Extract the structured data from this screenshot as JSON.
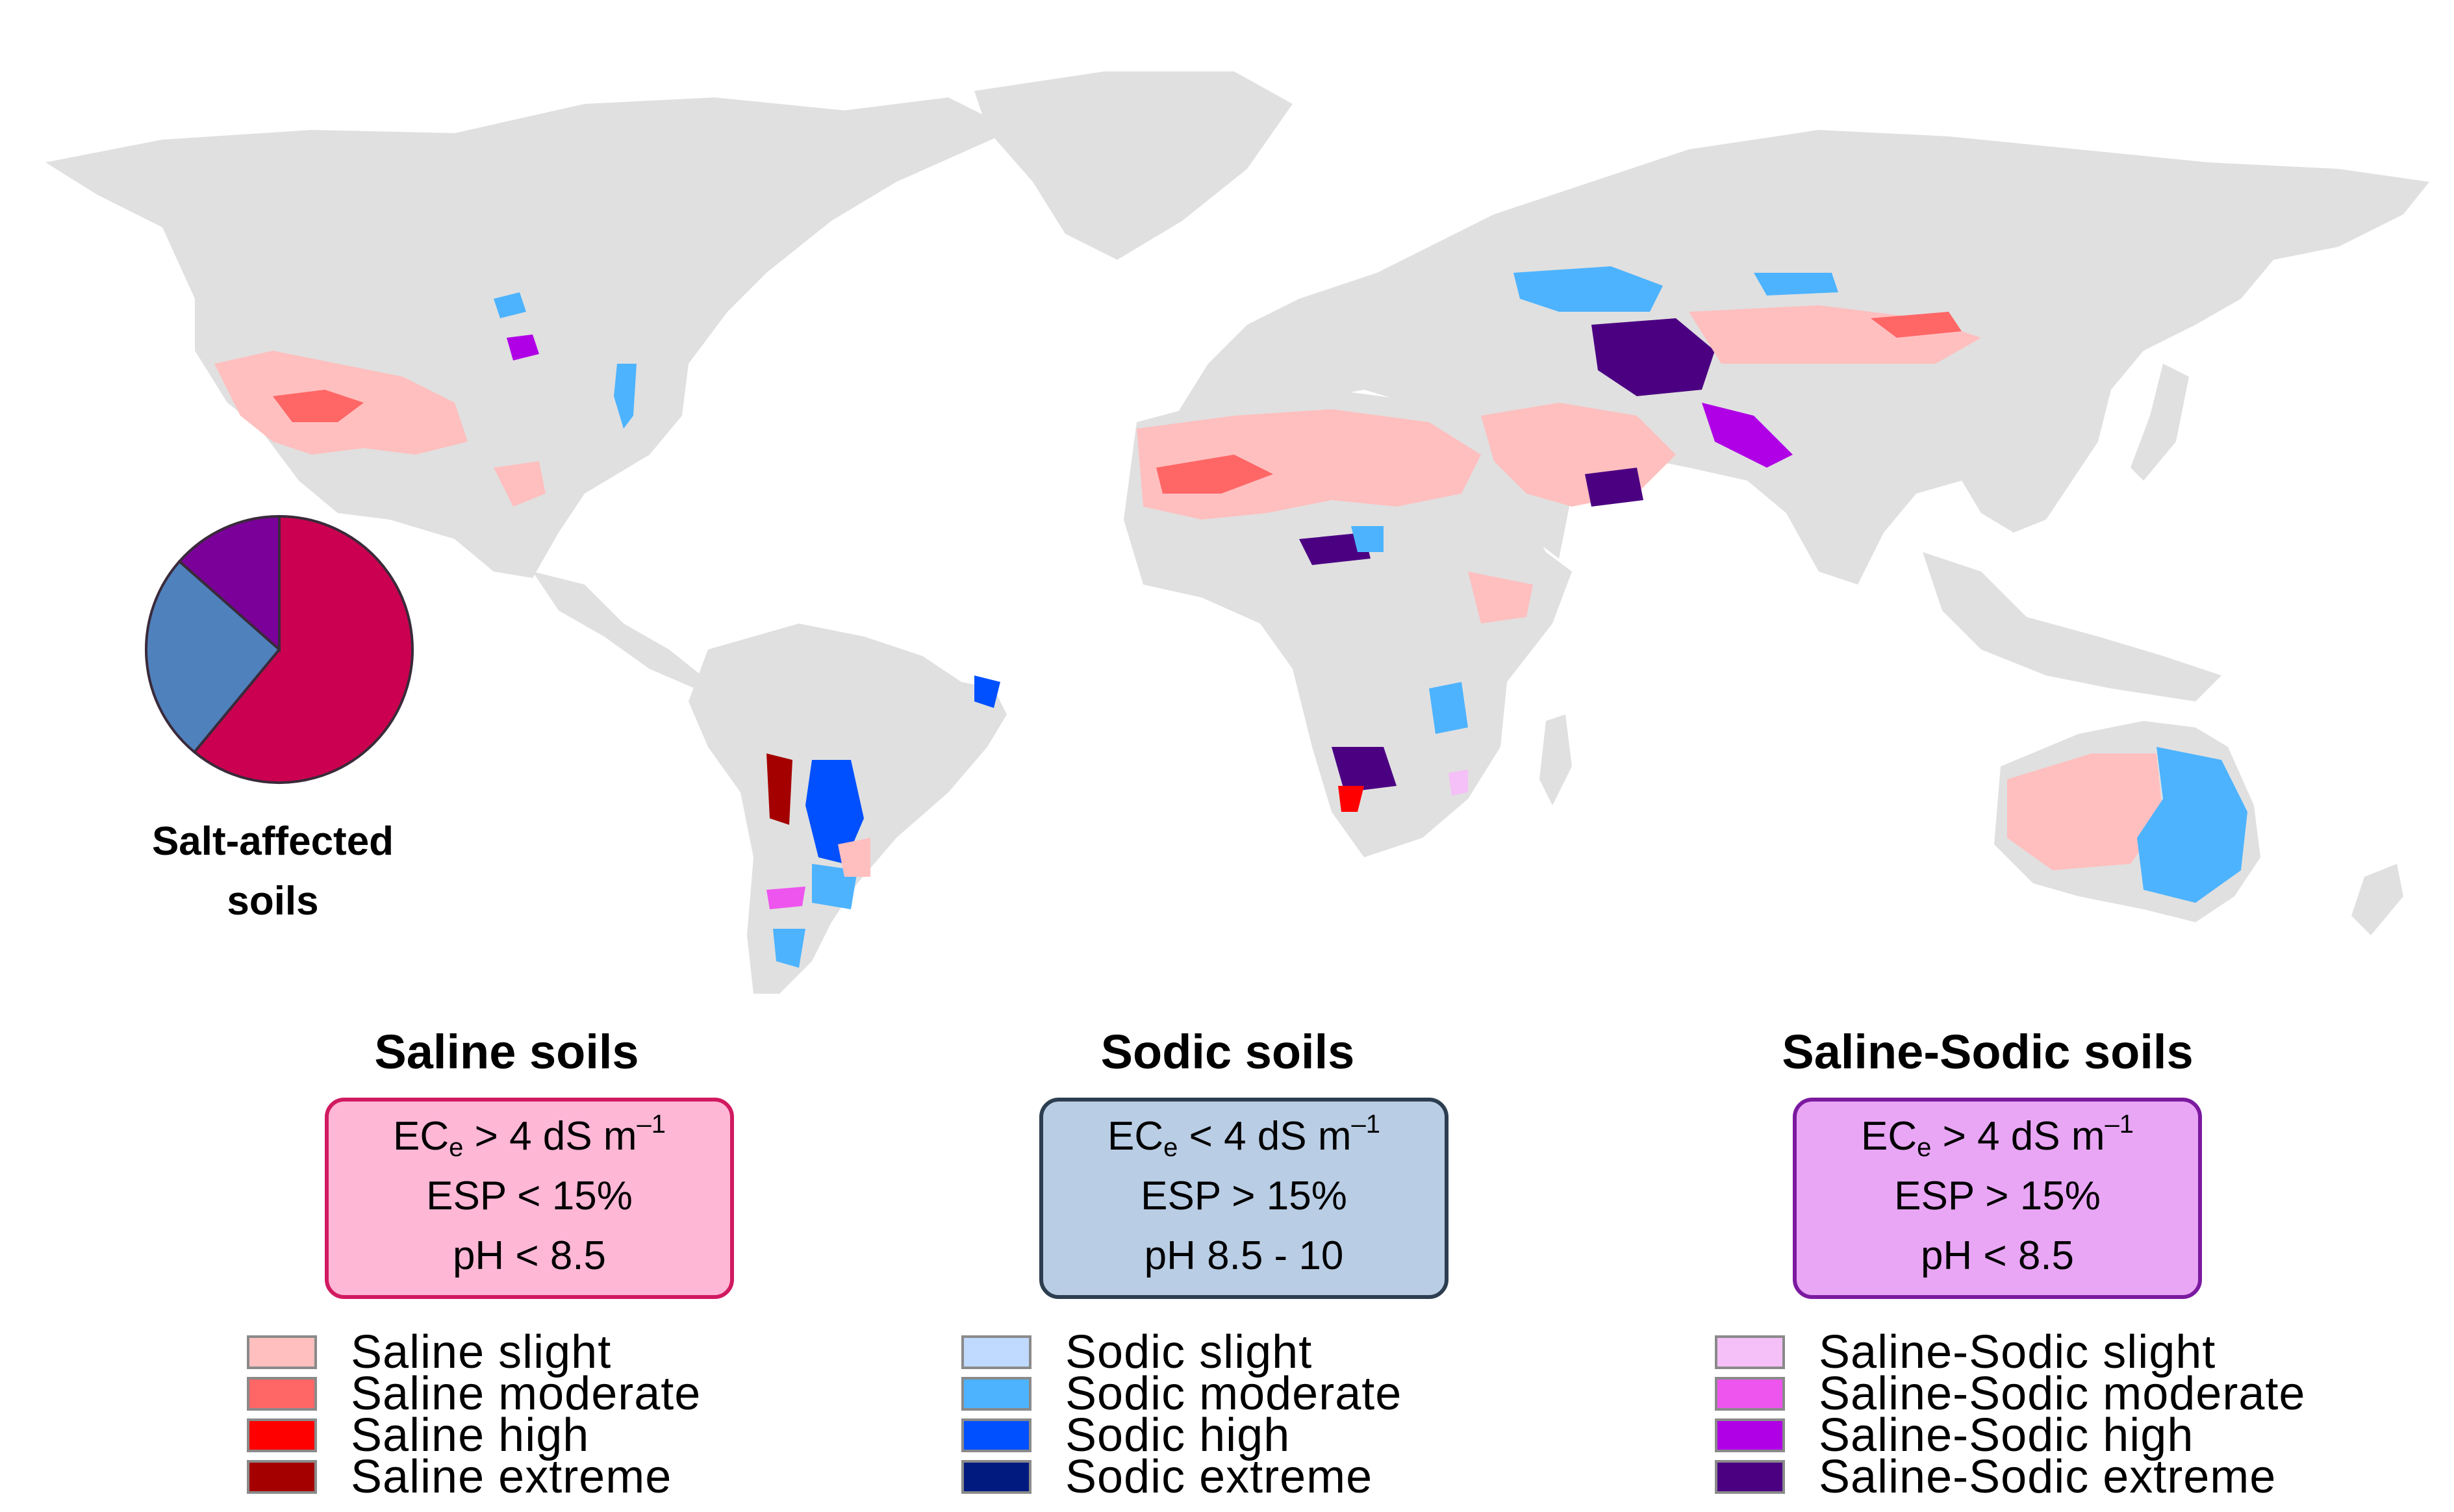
{
  "pie": {
    "label_line1": "Salt-affected",
    "label_line2": "soils",
    "slices": [
      {
        "name": "Saline",
        "fraction": 0.61,
        "color": "#cc0050"
      },
      {
        "name": "Sodic",
        "fraction": 0.255,
        "color": "#4f81bd"
      },
      {
        "name": "Saline-Sodic",
        "fraction": 0.135,
        "color": "#7a0099"
      }
    ]
  },
  "map": {
    "land_color": "#e0e0e0",
    "ocean_color": "#ffffff"
  },
  "groups": [
    {
      "title": "Saline soils",
      "box_fill": "#ffb7d6",
      "box_border": "#d11a60",
      "criteria": {
        "ec_op": " > 4 dS m",
        "esp": "ESP < 15%",
        "ph": "pH < 8.5"
      },
      "legend": [
        {
          "label": "Saline slight",
          "color": "#ffbfbf"
        },
        {
          "label": "Saline moderate",
          "color": "#ff6666"
        },
        {
          "label": "Saline high",
          "color": "#ff0000"
        },
        {
          "label": "Saline extreme",
          "color": "#a50000"
        }
      ]
    },
    {
      "title": "Sodic soils",
      "box_fill": "#b9cde4",
      "box_border": "#2c3e50",
      "criteria": {
        "ec_op": " < 4 dS m",
        "esp": "ESP > 15%",
        "ph": "pH  8.5 - 10"
      },
      "legend": [
        {
          "label": "Sodic slight",
          "color": "#bfd9ff"
        },
        {
          "label": "Sodic moderate",
          "color": "#4db3ff"
        },
        {
          "label": "Sodic high",
          "color": "#0050ff"
        },
        {
          "label": "Sodic extreme",
          "color": "#001a80"
        }
      ]
    },
    {
      "title": "Saline-Sodic soils",
      "box_fill": "#e9a6f5",
      "box_border": "#7b1aa0",
      "criteria": {
        "ec_op": " > 4 dS m",
        "esp": "ESP > 15%",
        "ph": "pH < 8.5"
      },
      "legend": [
        {
          "label": "Saline-Sodic slight",
          "color": "#f5bff7"
        },
        {
          "label": "Saline-Sodic moderate",
          "color": "#ee55ee"
        },
        {
          "label": "Saline-Sodic high",
          "color": "#b000e6"
        },
        {
          "label": "Saline-Sodic extreme",
          "color": "#4b0082"
        }
      ]
    }
  ]
}
